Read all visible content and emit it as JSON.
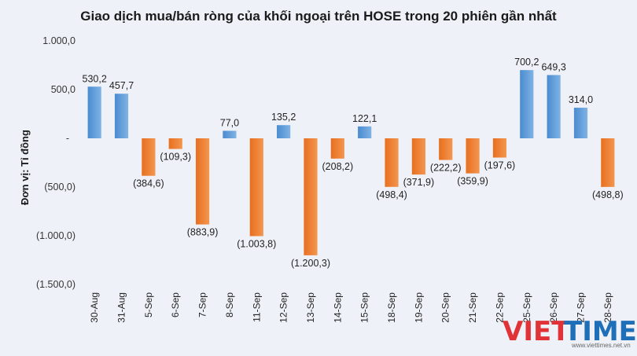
{
  "chart_data": {
    "type": "bar",
    "title": "Giao dịch mua/bán ròng của khối ngoại trên HOSE trong 20 phiên gần nhất",
    "ylabel": "Đơn vị: Tỉ đồng",
    "xlabel": "",
    "ylim": [
      -1500,
      1000
    ],
    "yticks": [
      1000,
      500,
      0,
      -500,
      -1000,
      -1500
    ],
    "ytick_labels": [
      "1.000,0",
      "500,0",
      "-",
      "(500,0)",
      "(1.000,0)",
      "(1.500,0)"
    ],
    "categories": [
      "30-Aug",
      "31-Aug",
      "5-Sep",
      "6-Sep",
      "7-Sep",
      "8-Sep",
      "11-Sep",
      "12-Sep",
      "13-Sep",
      "14-Sep",
      "15-Sep",
      "18-Sep",
      "19-Sep",
      "20-Sep",
      "21-Sep",
      "22-Sep",
      "25-Sep",
      "26-Sep",
      "27-Sep",
      "28-Sep"
    ],
    "values": [
      530.2,
      457.7,
      -384.6,
      -109.3,
      -883.9,
      77.0,
      -1003.8,
      135.2,
      -1200.3,
      -208.2,
      122.1,
      -498.4,
      -371.9,
      -222.2,
      -359.9,
      -197.6,
      700.2,
      649.3,
      314.0,
      -498.8
    ],
    "value_labels": [
      "530,2",
      "457,7",
      "(384,6)",
      "(109,3)",
      "(883,9)",
      "77,0",
      "(1.003,8)",
      "135,2",
      "(1.200,3)",
      "(208,2)",
      "122,1",
      "(498,4)",
      "(371,9)",
      "(222,2)",
      "(359,9)",
      "(197,6)",
      "700,2",
      "649,3",
      "314,0",
      "(498,8)"
    ],
    "colors": {
      "positive": "#5b9bd5",
      "positive_dark": "#3d7fc0",
      "negative": "#ed7d31",
      "background": "#eef2f8"
    }
  },
  "watermark": {
    "brand_part1": "VIET",
    "brand_part2": "TIMES",
    "domain": "www.viettimes.net.vn",
    "color_red": "#e03237",
    "color_blue": "#1e6fb8"
  }
}
